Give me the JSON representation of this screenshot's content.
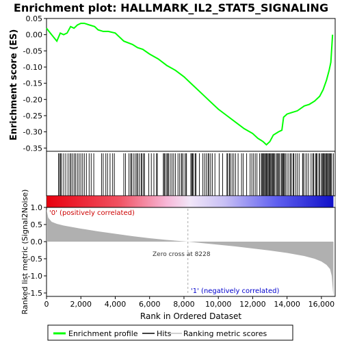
{
  "chart_data": {
    "type": "line",
    "title": "Enrichment plot: HALLMARK_IL2_STAT5_SIGNALING",
    "top_panel": {
      "ylabel": "Enrichment score (ES)",
      "ylim": [
        -0.36,
        0.05
      ],
      "yticks": [
        "0.05",
        "0.00",
        "-0.05",
        "-0.10",
        "-0.15",
        "-0.20",
        "-0.25",
        "-0.30",
        "-0.35"
      ],
      "ytick_values": [
        0.05,
        0.0,
        -0.05,
        -0.1,
        -0.15,
        -0.2,
        -0.25,
        -0.3,
        -0.35
      ],
      "series": [
        {
          "name": "Enrichment profile",
          "color": "#00ff00",
          "x": [
            0,
            300,
            600,
            800,
            1000,
            1200,
            1400,
            1600,
            1800,
            2000,
            2200,
            2500,
            2800,
            3000,
            3300,
            3600,
            4000,
            4500,
            5000,
            5300,
            5600,
            6000,
            6500,
            7000,
            7500,
            8000,
            8500,
            9000,
            9500,
            10000,
            10500,
            11000,
            11500,
            12000,
            12300,
            12600,
            12800,
            13000,
            13200,
            13500,
            13700,
            13800,
            14000,
            14300,
            14600,
            15000,
            15300,
            15600,
            15900,
            16100,
            16300,
            16450,
            16550,
            16650
          ],
          "y": [
            0.02,
            0.0,
            -0.02,
            0.005,
            0.0,
            0.005,
            0.025,
            0.02,
            0.03,
            0.035,
            0.035,
            0.03,
            0.025,
            0.015,
            0.01,
            0.01,
            0.005,
            -0.02,
            -0.03,
            -0.04,
            -0.045,
            -0.06,
            -0.075,
            -0.095,
            -0.11,
            -0.13,
            -0.155,
            -0.18,
            -0.205,
            -0.23,
            -0.25,
            -0.27,
            -0.29,
            -0.305,
            -0.32,
            -0.33,
            -0.34,
            -0.33,
            -0.31,
            -0.3,
            -0.295,
            -0.255,
            -0.245,
            -0.24,
            -0.235,
            -0.22,
            -0.215,
            -0.205,
            -0.19,
            -0.17,
            -0.14,
            -0.11,
            -0.085,
            0.0
          ]
        }
      ]
    },
    "bottom_panel": {
      "ylabel": "Ranked list metric (Signal2Noise)",
      "xlabel": "Rank in Ordered Dataset",
      "ylim": [
        -1.6,
        1.0
      ],
      "yticks": [
        "1.0",
        "0.5",
        "0.0",
        "-0.5",
        "-1.0",
        "-1.5"
      ],
      "ytick_values": [
        1.0,
        0.5,
        0.0,
        -0.5,
        -1.0,
        -1.5
      ],
      "xlim": [
        0,
        16800
      ],
      "xticks": [
        "0",
        "2,000",
        "4,000",
        "6,000",
        "8,000",
        "10,000",
        "12,000",
        "14,000",
        "16,000"
      ],
      "xtick_values": [
        0,
        2000,
        4000,
        6000,
        8000,
        10000,
        12000,
        14000,
        16000
      ],
      "metric_x": [
        0,
        100,
        300,
        600,
        1000,
        2000,
        3000,
        4000,
        5000,
        6000,
        7000,
        8228,
        9000,
        10000,
        11000,
        12000,
        13000,
        14000,
        15000,
        15600,
        16000,
        16300,
        16500,
        16600,
        16650,
        16700
      ],
      "metric_y": [
        0.95,
        0.7,
        0.58,
        0.52,
        0.47,
        0.38,
        0.3,
        0.23,
        0.16,
        0.1,
        0.05,
        0.0,
        -0.04,
        -0.09,
        -0.14,
        -0.2,
        -0.26,
        -0.33,
        -0.42,
        -0.5,
        -0.58,
        -0.68,
        -0.8,
        -1.0,
        -1.3,
        -1.6
      ]
    },
    "hits_x": [
      700,
      760,
      820,
      880,
      1000,
      1120,
      1250,
      1360,
      1430,
      1520,
      1620,
      1700,
      1800,
      1900,
      2000,
      2100,
      2200,
      2320,
      2480,
      2600,
      2750,
      3200,
      3300,
      3450,
      3550,
      3700,
      3850,
      3950,
      4500,
      4600,
      4800,
      4900,
      4950,
      5050,
      5150,
      5250,
      5300,
      5400,
      5500,
      5550,
      5650,
      5700,
      5950,
      6100,
      6250,
      6400,
      6450,
      6800,
      6850,
      6900,
      7000,
      7050,
      7100,
      7200,
      7300,
      7400,
      7500,
      7650,
      7750,
      7850,
      7900,
      8000,
      8100,
      8150,
      8400,
      8450,
      8500,
      8550,
      8650,
      8700,
      8900,
      9100,
      9200,
      9300,
      9400,
      9450,
      9550,
      9650,
      9800,
      10050,
      10250,
      10500,
      10550,
      10650,
      10700,
      10800,
      10900,
      11000,
      11150,
      11350,
      11450,
      11650,
      11850,
      11950,
      12050,
      12150,
      12250,
      12400,
      12500,
      12550,
      12600,
      12650,
      12700,
      12750,
      12800,
      12850,
      12900,
      12950,
      13000,
      13050,
      13100,
      13150,
      13200,
      13250,
      13300,
      13400,
      13450,
      13500,
      13550,
      13650,
      13700,
      13750,
      13800,
      13850,
      13900,
      14000,
      14100,
      14200,
      14250,
      14350,
      14400,
      14500,
      14600,
      14700,
      14900,
      14950,
      15050,
      15150,
      15250,
      15400,
      15500,
      15550,
      15650,
      15700,
      15750,
      15850,
      15900,
      16000,
      16050,
      16100,
      16150,
      16200,
      16250,
      16300,
      16350,
      16400,
      16450,
      16500,
      16550,
      16600,
      16700
    ],
    "gradient_labels": {
      "positive": "'0' (positively correlated)",
      "negative": "'1' (negatively correlated)",
      "positive_color": "#cc0000",
      "negative_color": "#0000cc"
    },
    "zero_cross_label": "Zero cross at 8228",
    "zero_cross": 8228,
    "metric_color": "#b0b0b0",
    "hit_color": "#000000",
    "legend": {
      "position": "bottom",
      "items": [
        {
          "label": "Enrichment profile",
          "color": "#00ff00"
        },
        {
          "label": "Hits",
          "color": "#000000"
        },
        {
          "label": "Ranking metric scores",
          "color": "#c0c0c0"
        }
      ]
    }
  }
}
